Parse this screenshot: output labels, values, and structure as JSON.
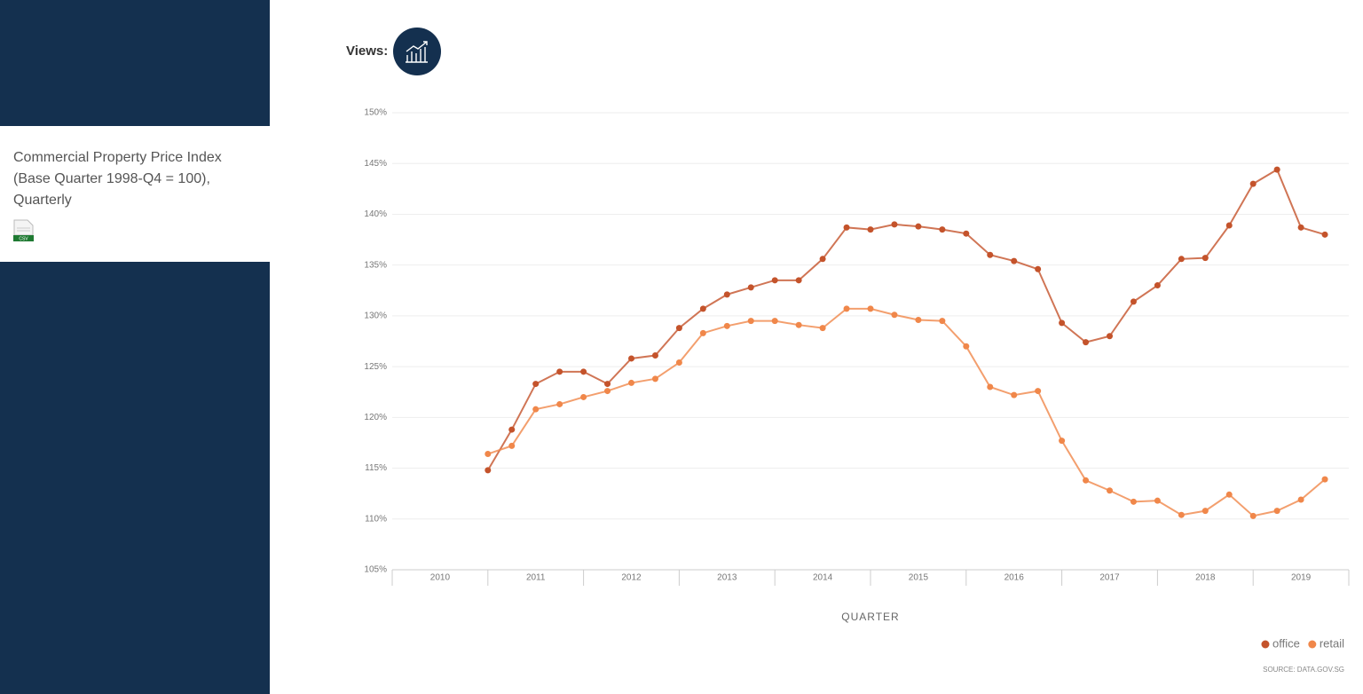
{
  "sidebar": {
    "title": "Commercial Property Price Index (Base Quarter 1998-Q4 = 100), Quarterly",
    "download": "CSV"
  },
  "views_label": "Views:",
  "chart_data": {
    "type": "line",
    "x_label": "QUARTER",
    "source": "SOURCE: DATA.GOV.SG",
    "x": [
      2011,
      2011.25,
      2011.5,
      2011.75,
      2012,
      2012.25,
      2012.5,
      2012.75,
      2013,
      2013.25,
      2013.5,
      2013.75,
      2014,
      2014.25,
      2014.5,
      2014.75,
      2015,
      2015.25,
      2015.5,
      2015.75,
      2016,
      2016.25,
      2016.5,
      2016.75,
      2017,
      2017.25,
      2017.5,
      2017.75,
      2018,
      2018.25,
      2018.5,
      2018.75,
      2019,
      2019.25,
      2019.5,
      2019.75
    ],
    "xlim": [
      2010,
      2020
    ],
    "xticks": [
      2010,
      2011,
      2012,
      2013,
      2014,
      2015,
      2016,
      2017,
      2018,
      2019
    ],
    "ylim": [
      105,
      150
    ],
    "yticks": [
      {
        "value": 105,
        "label": "105%"
      },
      {
        "value": 110,
        "label": "110%"
      },
      {
        "value": 115,
        "label": "115%"
      },
      {
        "value": 120,
        "label": "120%"
      },
      {
        "value": 125,
        "label": "125%"
      },
      {
        "value": 130,
        "label": "130%"
      },
      {
        "value": 135,
        "label": "135%"
      },
      {
        "value": 140,
        "label": "140%"
      },
      {
        "value": 145,
        "label": "145%"
      },
      {
        "value": 150,
        "label": "150%"
      }
    ],
    "grid": true,
    "legend": "bottom-right",
    "series": [
      {
        "name": "office",
        "color": "#c4532b",
        "values": [
          114.8,
          118.8,
          123.3,
          124.5,
          124.5,
          123.3,
          125.8,
          126.1,
          128.8,
          130.7,
          132.1,
          132.8,
          133.5,
          133.5,
          135.6,
          138.7,
          138.5,
          139.0,
          138.8,
          138.5,
          138.1,
          136.0,
          135.4,
          134.6,
          129.3,
          127.4,
          128.0,
          131.4,
          133.0,
          135.6,
          135.7,
          138.9,
          143.0,
          144.4,
          138.7,
          138.0
        ]
      },
      {
        "name": "retail",
        "color": "#f0874a",
        "values": [
          116.4,
          117.2,
          120.8,
          121.3,
          122.0,
          122.6,
          123.4,
          123.8,
          125.4,
          128.3,
          129.0,
          129.5,
          129.5,
          129.1,
          128.8,
          130.7,
          130.7,
          130.1,
          129.6,
          129.5,
          127.0,
          123.0,
          122.2,
          122.6,
          117.7,
          113.8,
          112.8,
          111.7,
          111.8,
          110.4,
          110.8,
          112.4,
          110.3,
          110.8,
          111.9,
          113.9
        ]
      }
    ]
  }
}
